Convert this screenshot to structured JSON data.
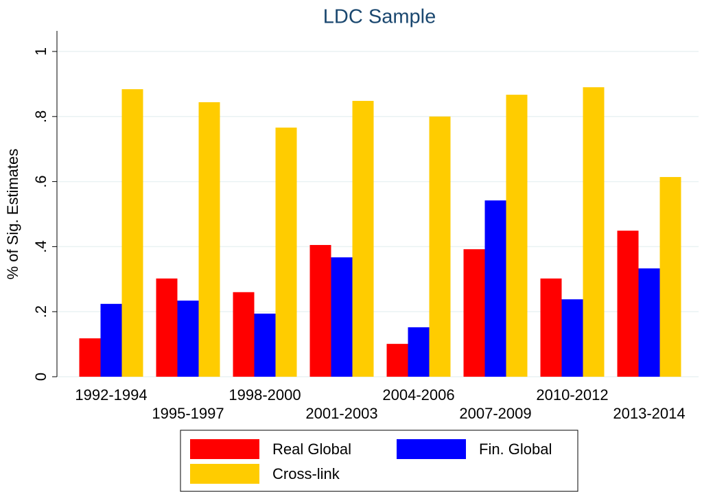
{
  "chart_data": {
    "type": "bar",
    "title": "LDC Sample",
    "y_label": "% of Sig. Estimates",
    "categories": [
      "1992-1994",
      "1995-1997",
      "1998-2000",
      "2001-2003",
      "2004-2006",
      "2007-2009",
      "2010-2012",
      "2013-2014"
    ],
    "series": [
      {
        "name": "Real Global",
        "color": "#ff0000",
        "values": [
          0.118,
          0.302,
          0.26,
          0.405,
          0.101,
          0.392,
          0.302,
          0.449
        ]
      },
      {
        "name": "Fin. Global",
        "color": "#0000ff",
        "values": [
          0.224,
          0.234,
          0.194,
          0.367,
          0.152,
          0.542,
          0.238,
          0.333
        ]
      },
      {
        "name": "Cross-link",
        "color": "#ffcc00",
        "values": [
          0.884,
          0.844,
          0.766,
          0.848,
          0.8,
          0.867,
          0.89,
          0.614
        ]
      }
    ],
    "ylim": [
      0,
      1
    ],
    "yticks": [
      0,
      {
        "value": 0.2,
        "label": ".2"
      },
      {
        "value": 0.4,
        "label": ".4"
      },
      {
        "value": 0.6,
        "label": ".6"
      },
      {
        "value": 0.8,
        "label": ".8"
      },
      1
    ],
    "grid": true
  }
}
